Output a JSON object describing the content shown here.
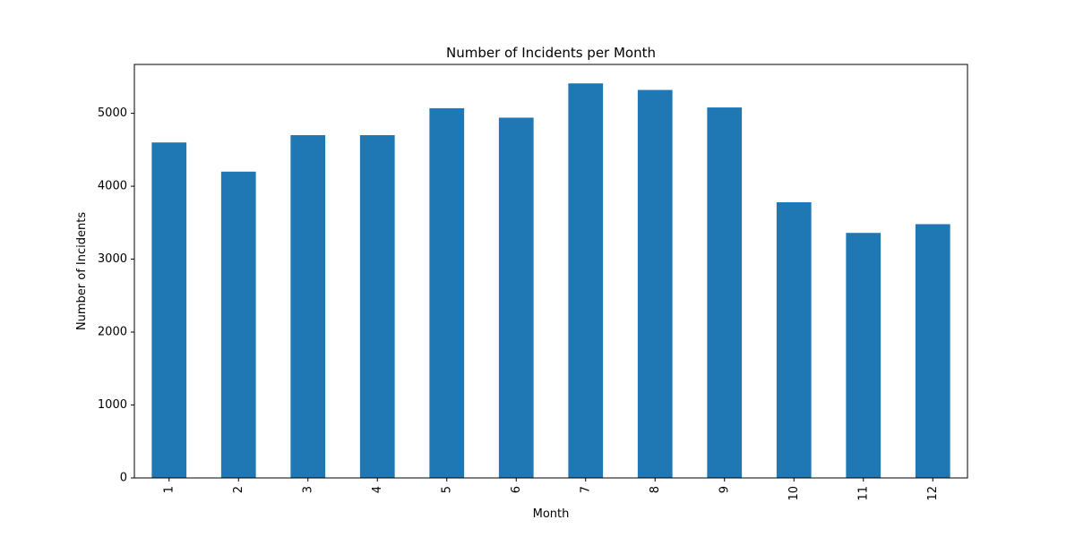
{
  "chart_data": {
    "type": "bar",
    "title": "Number of Incidents per Month",
    "xlabel": "Month",
    "ylabel": "Number of Incidents",
    "categories": [
      "1",
      "2",
      "3",
      "4",
      "5",
      "6",
      "7",
      "8",
      "9",
      "10",
      "11",
      "12"
    ],
    "values": [
      4600,
      4200,
      4700,
      4700,
      5070,
      4940,
      5410,
      5320,
      5080,
      3780,
      3360,
      3480
    ],
    "ylim": [
      0,
      5670
    ],
    "yticks": [
      0,
      1000,
      2000,
      3000,
      4000,
      5000
    ],
    "grid": false,
    "legend": "none",
    "bar_color": "#1f77b4"
  }
}
